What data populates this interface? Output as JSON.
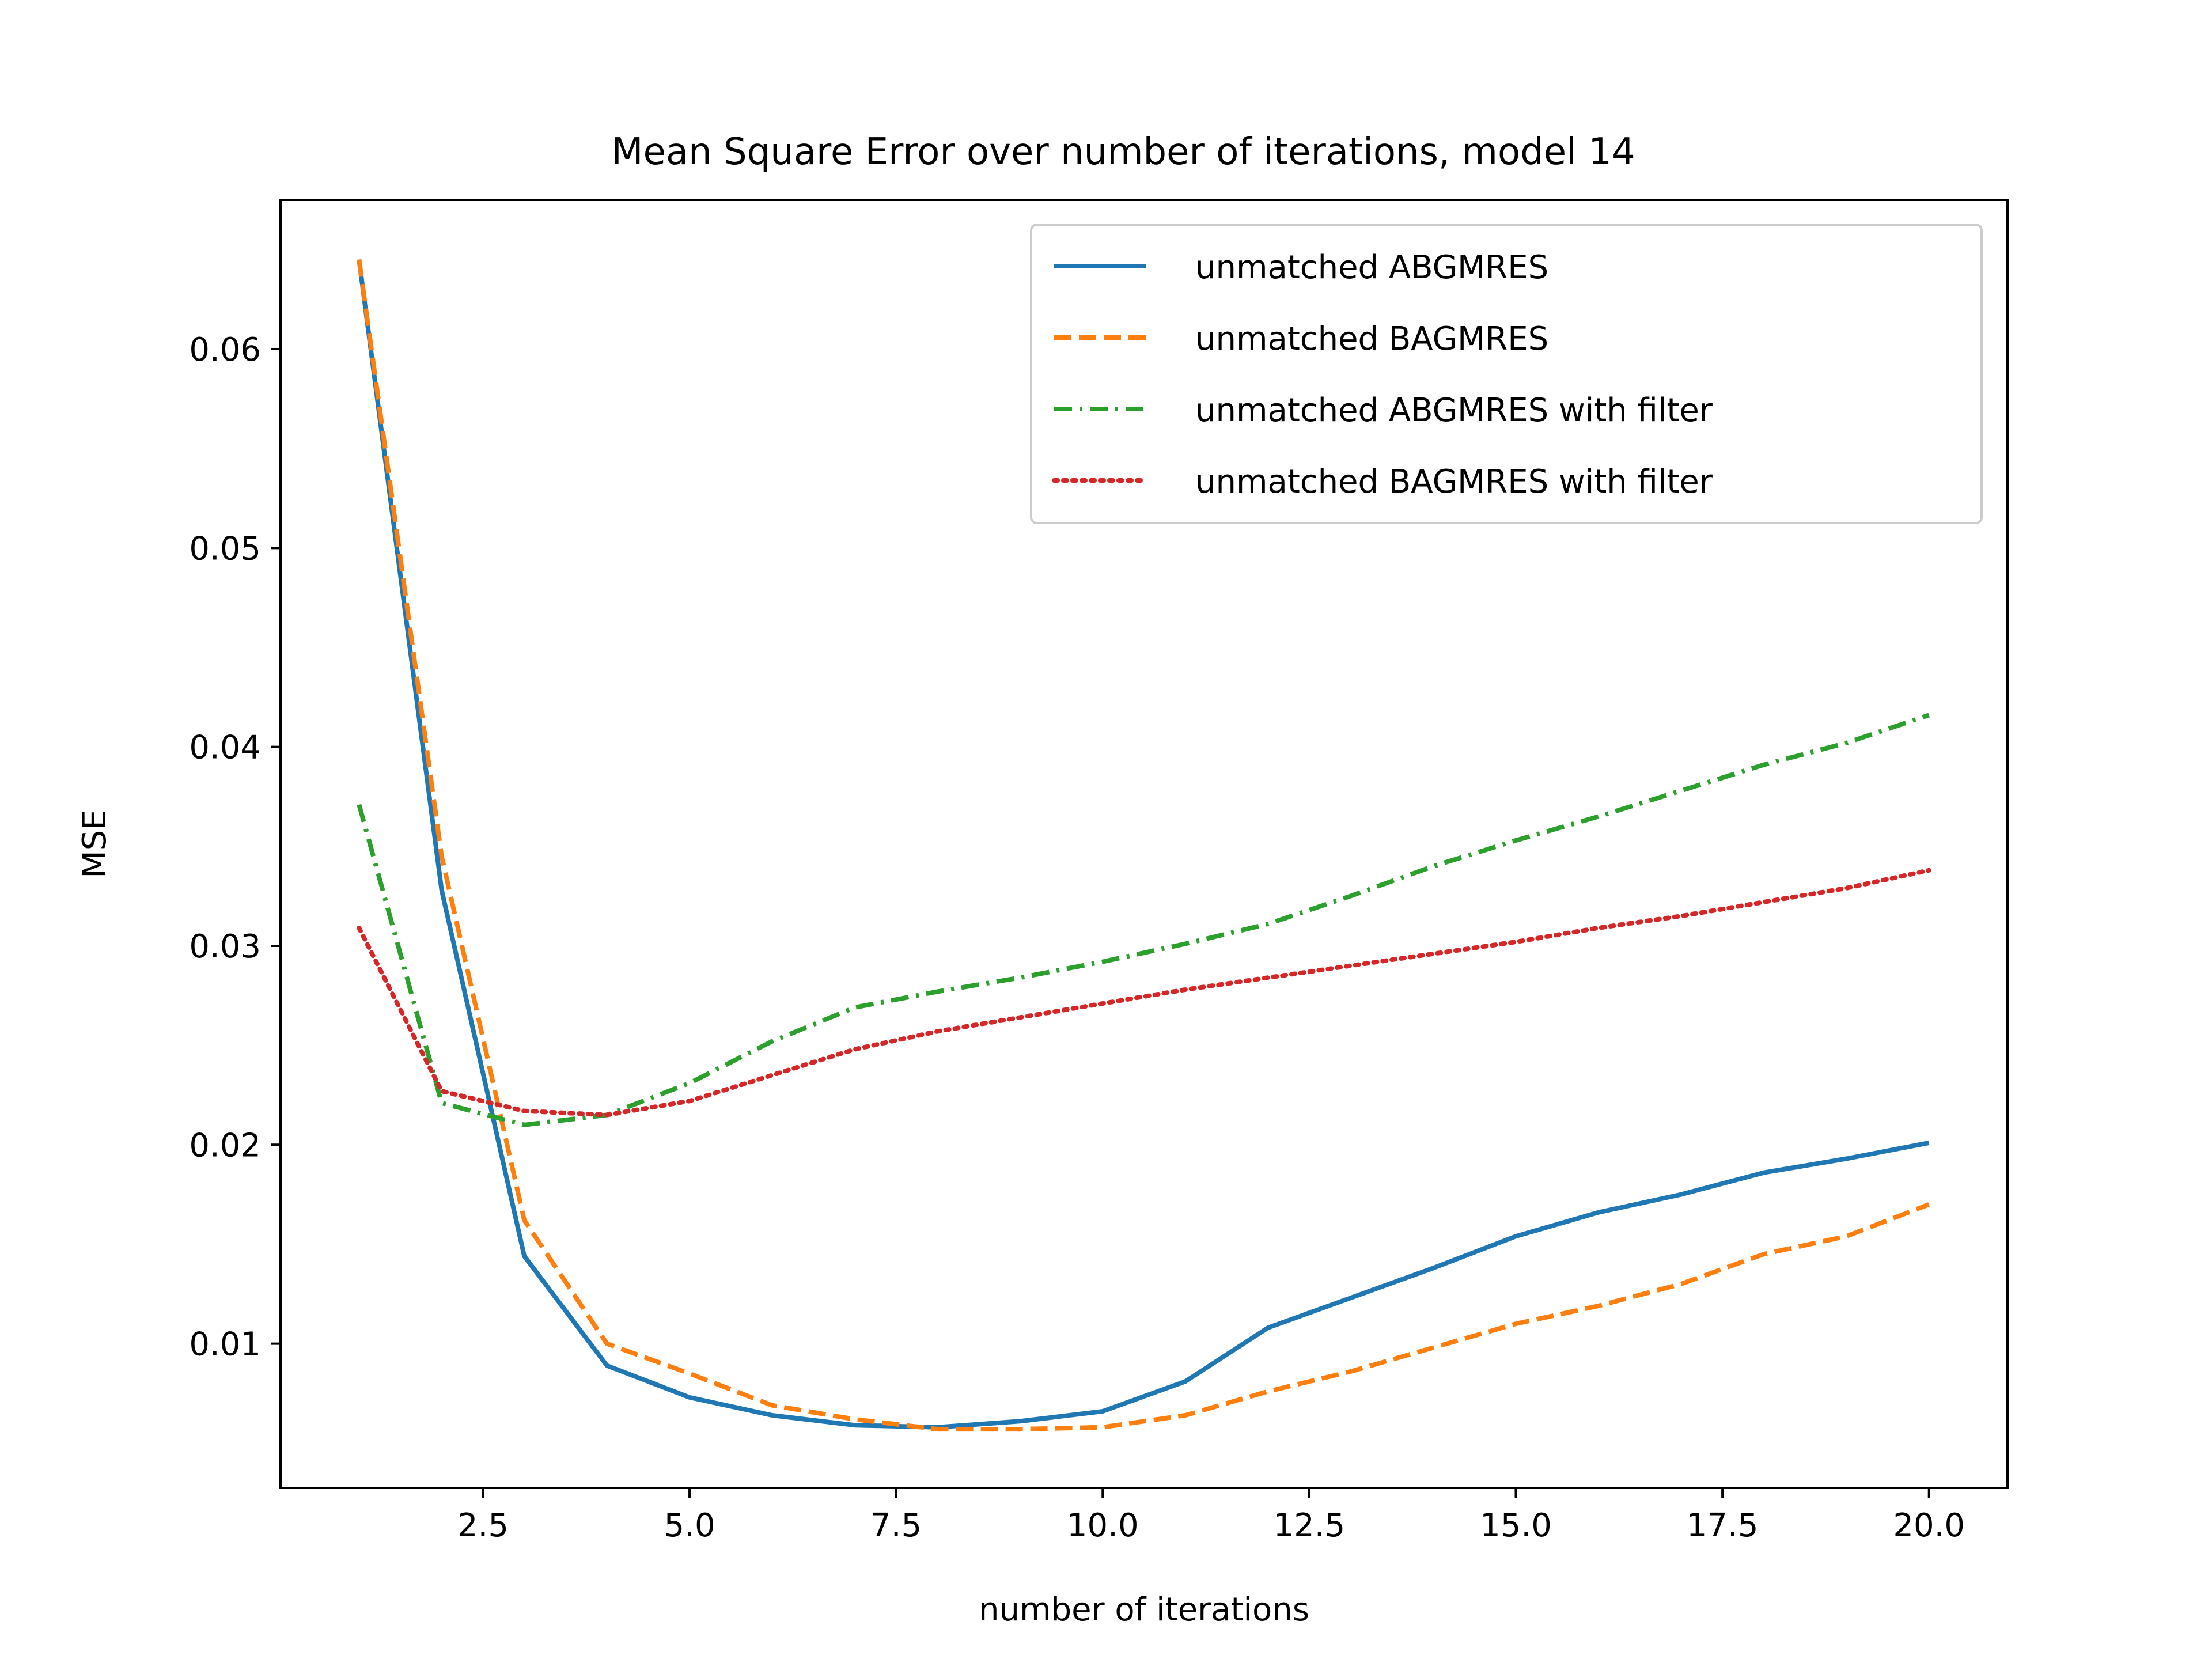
{
  "chart_data": {
    "type": "line",
    "title": "Mean Square Error over number of iterations, model 14",
    "xlabel": "number of iterations",
    "ylabel": "MSE",
    "xlim": [
      0.05,
      20.95
    ],
    "ylim": [
      0.00275,
      0.0675
    ],
    "xticks": [
      2.5,
      5.0,
      7.5,
      10.0,
      12.5,
      15.0,
      17.5,
      20.0
    ],
    "xtick_labels": [
      "2.5",
      "5.0",
      "7.5",
      "10.0",
      "12.5",
      "15.0",
      "17.5",
      "20.0"
    ],
    "yticks": [
      0.01,
      0.02,
      0.03,
      0.04,
      0.05,
      0.06
    ],
    "ytick_labels": [
      "0.01",
      "0.02",
      "0.03",
      "0.04",
      "0.05",
      "0.06"
    ],
    "grid": false,
    "legend_position": "top-right",
    "x": [
      1,
      2,
      3,
      4,
      5,
      6,
      7,
      8,
      9,
      10,
      11,
      12,
      13,
      14,
      15,
      16,
      17,
      18,
      19,
      20
    ],
    "series": [
      {
        "name": "unmatched ABGMRES",
        "color": "#1f77b4",
        "style": "solid",
        "values": [
          0.0645,
          0.0328,
          0.0144,
          0.0089,
          0.0073,
          0.0064,
          0.0059,
          0.0058,
          0.0061,
          0.0066,
          0.0081,
          0.0108,
          0.0123,
          0.0138,
          0.0154,
          0.0166,
          0.0175,
          0.0186,
          0.0193,
          0.0201
        ]
      },
      {
        "name": "unmatched BAGMRES",
        "color": "#ff7f0e",
        "style": "dashed",
        "values": [
          0.0645,
          0.0345,
          0.0162,
          0.01,
          0.0085,
          0.0069,
          0.0062,
          0.0057,
          0.0057,
          0.0058,
          0.0064,
          0.0076,
          0.0086,
          0.0098,
          0.011,
          0.0119,
          0.013,
          0.0145,
          0.0154,
          0.017
        ]
      },
      {
        "name": "unmatched ABGMRES with filter",
        "color": "#2ca02c",
        "style": "dashdot",
        "values": [
          0.0371,
          0.0221,
          0.021,
          0.0215,
          0.0231,
          0.0252,
          0.0269,
          0.0277,
          0.0284,
          0.0292,
          0.0301,
          0.0311,
          0.0325,
          0.034,
          0.0353,
          0.0365,
          0.0378,
          0.0391,
          0.0402,
          0.0416
        ]
      },
      {
        "name": "unmatched BAGMRES with filter",
        "color": "#d62728",
        "style": "dotted",
        "values": [
          0.0309,
          0.0227,
          0.0217,
          0.0215,
          0.0222,
          0.0235,
          0.0248,
          0.0257,
          0.0264,
          0.0271,
          0.0278,
          0.0284,
          0.029,
          0.0296,
          0.0302,
          0.0309,
          0.0315,
          0.0322,
          0.0329,
          0.0338
        ]
      }
    ]
  }
}
